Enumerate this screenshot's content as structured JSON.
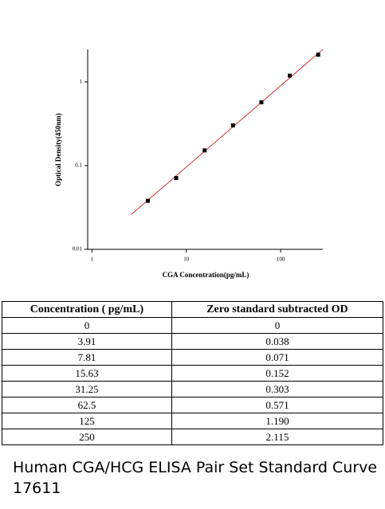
{
  "chart_data": {
    "type": "scatter",
    "x": [
      3.91,
      7.81,
      15.63,
      31.25,
      62.5,
      125,
      250
    ],
    "values": [
      0.038,
      0.071,
      0.152,
      0.303,
      0.571,
      1.19,
      2.115
    ],
    "color": "#000000",
    "fit_x": [
      2.6,
      280
    ],
    "fit_y": [
      0.026,
      2.45
    ],
    "fit_color": "#cc0000",
    "x_label": "CGA Concentration(pg/mL)",
    "y_label": "Optical Density(450nm)",
    "xscale": "log",
    "yscale": "log",
    "xlim": [
      0.9,
      280
    ],
    "ylim": [
      0.01,
      2.45
    ],
    "xticks": [
      1,
      10,
      100
    ],
    "yticks": [
      0.01,
      0.1,
      1
    ]
  },
  "table": {
    "header": [
      "Concentration ( pg/mL)",
      "Zero standard subtracted OD"
    ],
    "rows": [
      [
        "0",
        "0"
      ],
      [
        "3.91",
        "0.038"
      ],
      [
        "7.81",
        "0.071"
      ],
      [
        "15.63",
        "0.152"
      ],
      [
        "31.25",
        "0.303"
      ],
      [
        "62.5",
        "0.571"
      ],
      [
        "125",
        "1.190"
      ],
      [
        "250",
        "2.115"
      ]
    ]
  },
  "caption": [
    "Human CGA/HCG ELISA Pair Set Standard Curve",
    "17611"
  ]
}
